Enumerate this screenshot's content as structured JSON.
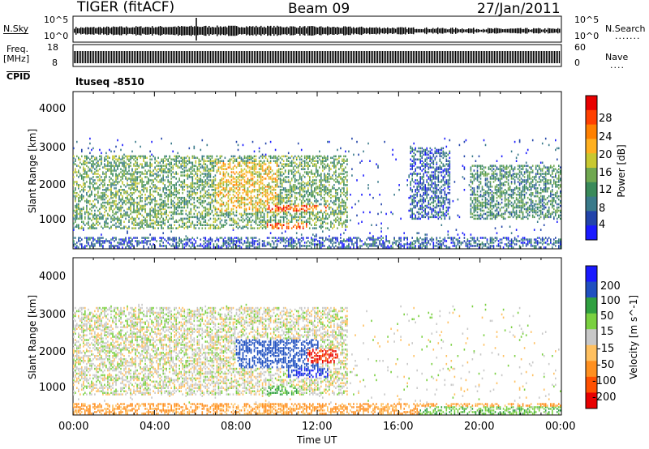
{
  "header": {
    "title": "TIGER (fitACF)",
    "beam": "Beam 09",
    "date": "27/Jan/2011"
  },
  "top_panels": {
    "nsky_label": "N.Sky",
    "nsky_ticks": [
      "10^5",
      "10^0"
    ],
    "nsearch_label": "N.Search",
    "nsearch_ticks": [
      "10^5",
      "10^0"
    ],
    "freq_label_1": "Freq.",
    "freq_label_2": "[MHz]",
    "freq_ticks": [
      "18",
      "8"
    ],
    "nave_label": "Nave",
    "nave_ticks": [
      "60",
      "0"
    ],
    "cpid_label": "CPID",
    "cpid_value": "ltuseq -8510"
  },
  "panel_power": {
    "ylabel": "Slant Range [km]",
    "yticks": [
      "4000",
      "3000",
      "2000",
      "1000"
    ],
    "colorbar_label": "Power [dB]",
    "colorbar_ticks": [
      "28",
      "24",
      "20",
      "16",
      "12",
      "8",
      "4"
    ],
    "colors": [
      "#1a1aff",
      "#2244aa",
      "#3a7a8a",
      "#3a8a5a",
      "#70a850",
      "#c8c830",
      "#ffb020",
      "#ff8000",
      "#ff4000",
      "#e80000"
    ]
  },
  "panel_velocity": {
    "ylabel": "Slant Range [km]",
    "yticks": [
      "4000",
      "3000",
      "2000",
      "1000"
    ],
    "colorbar_label": "Velocity [m s^-1]",
    "colorbar_ticks": [
      "200",
      "100",
      "50",
      "15",
      "-15",
      "-50",
      "-100",
      "-200"
    ],
    "colors": [
      "#1a1aff",
      "#2050c0",
      "#30a040",
      "#7ad040",
      "#c8c8c8",
      "#ffc060",
      "#ff9020",
      "#ff5000",
      "#e80000"
    ]
  },
  "xaxis": {
    "label": "Time UT",
    "ticks": [
      "00:00",
      "04:00",
      "08:00",
      "12:00",
      "16:00",
      "20:00",
      "00:00"
    ]
  },
  "chart_data": [
    {
      "type": "heatmap",
      "title": "Power",
      "x_range_hours": [
        0,
        24
      ],
      "y_range_km": [
        180,
        4600
      ],
      "xlabel": "Time UT",
      "ylabel": "Slant Range [km]",
      "colorbar": "Power [dB]",
      "features": [
        {
          "time_hours": [
            0,
            24
          ],
          "range_km": [
            200,
            500
          ],
          "power_db": 8
        },
        {
          "time_hours": [
            0,
            13.5
          ],
          "range_km": [
            700,
            2800
          ],
          "power_db": 14
        },
        {
          "time_hours": [
            7,
            10
          ],
          "range_km": [
            1200,
            2600
          ],
          "power_db": 20
        },
        {
          "time_hours": [
            9.5,
            12.5
          ],
          "range_km": [
            1200,
            1400
          ],
          "power_db": 26
        },
        {
          "time_hours": [
            9.5,
            11.5
          ],
          "range_km": [
            700,
            900
          ],
          "power_db": 26
        },
        {
          "time_hours": [
            16.5,
            18.5
          ],
          "range_km": [
            1000,
            3000
          ],
          "power_db": 8
        },
        {
          "time_hours": [
            19.5,
            24
          ],
          "range_km": [
            1000,
            2500
          ],
          "power_db": 12
        }
      ]
    },
    {
      "type": "heatmap",
      "title": "Velocity",
      "x_range_hours": [
        0,
        24
      ],
      "y_range_km": [
        180,
        4600
      ],
      "xlabel": "Time UT",
      "ylabel": "Slant Range [km]",
      "colorbar": "Velocity [m s^-1]",
      "features": [
        {
          "time_hours": [
            0,
            24
          ],
          "range_km": [
            200,
            500
          ],
          "velocity_ms": -60
        },
        {
          "time_hours": [
            0,
            13.5
          ],
          "range_km": [
            700,
            3200
          ],
          "velocity_ms": 0
        },
        {
          "time_hours": [
            8,
            12
          ],
          "range_km": [
            1500,
            2300
          ],
          "velocity_ms": 150
        },
        {
          "time_hours": [
            10.5,
            12.5
          ],
          "range_km": [
            1200,
            1500
          ],
          "velocity_ms": 200
        },
        {
          "time_hours": [
            11.5,
            13
          ],
          "range_km": [
            1600,
            2000
          ],
          "velocity_ms": -200
        },
        {
          "time_hours": [
            9.5,
            11
          ],
          "range_km": [
            700,
            1000
          ],
          "velocity_ms": 60
        },
        {
          "time_hours": [
            17,
            24
          ],
          "range_km": [
            200,
            400
          ],
          "velocity_ms": 40
        }
      ]
    }
  ]
}
